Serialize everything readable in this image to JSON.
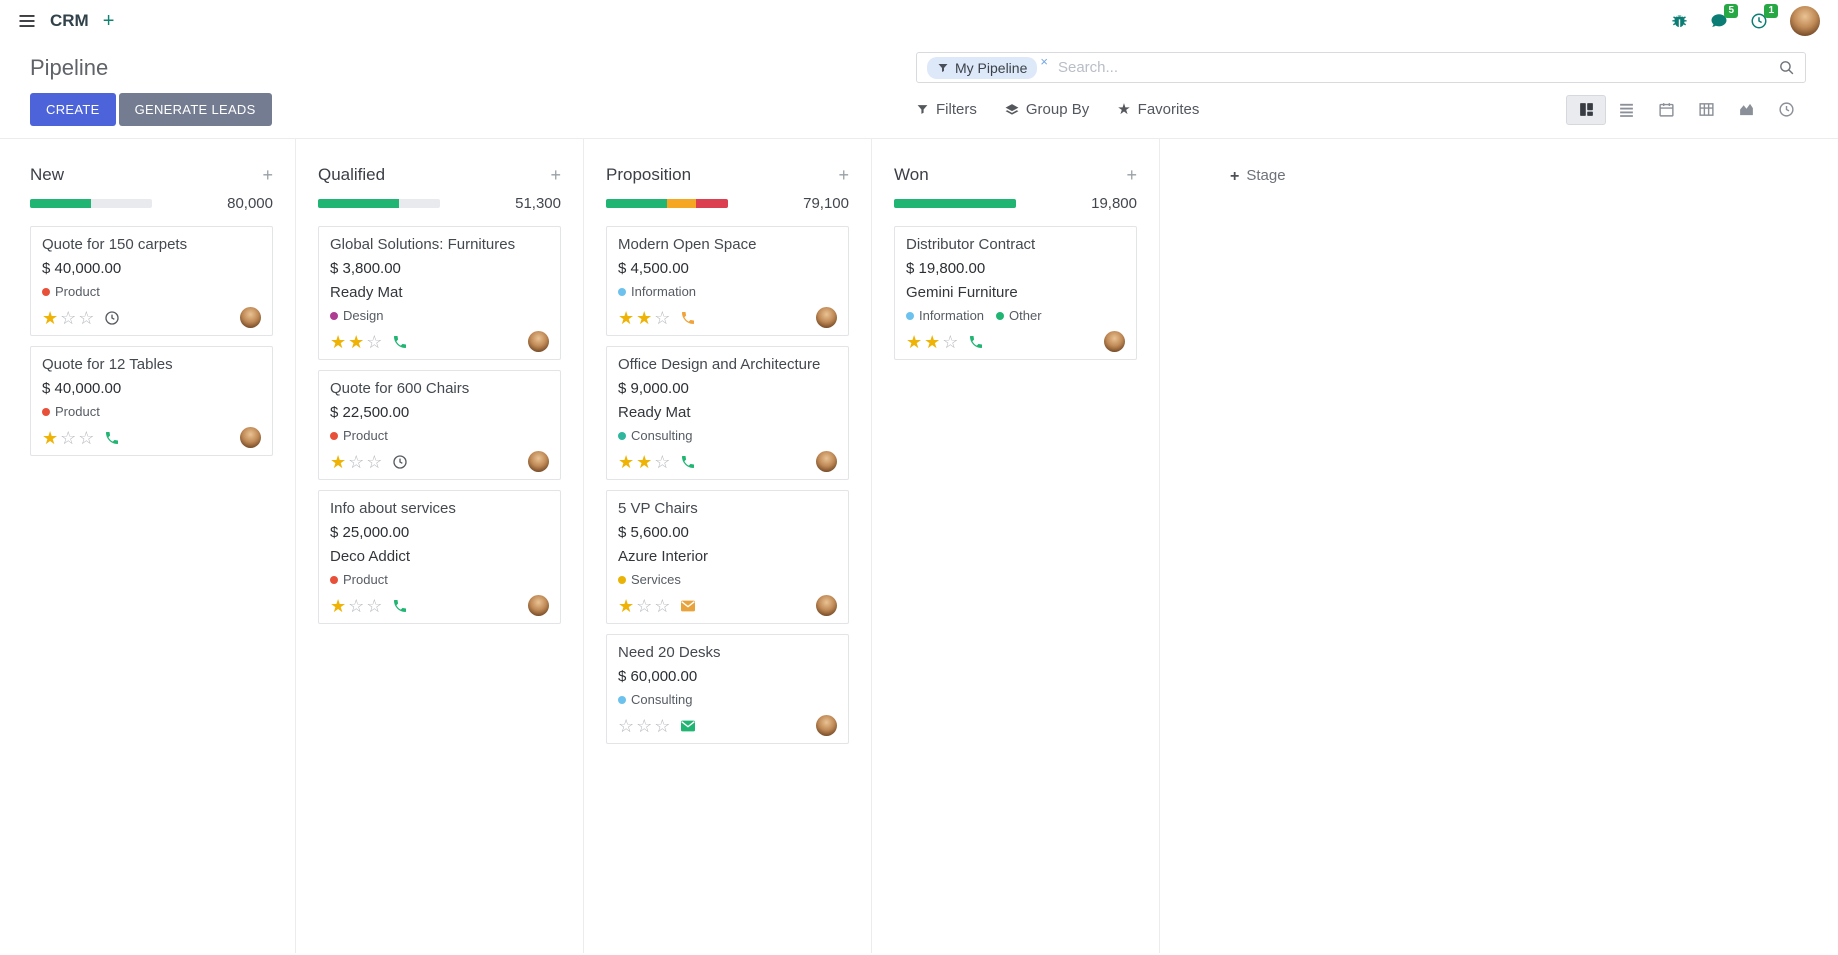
{
  "navbar": {
    "app_name": "CRM",
    "messages_badge": "5",
    "activities_badge": "1"
  },
  "control_panel": {
    "title": "Pipeline",
    "create_label": "CREATE",
    "generate_leads_label": "GENERATE LEADS",
    "filters_label": "Filters",
    "group_by_label": "Group By",
    "favorites_label": "Favorites",
    "search": {
      "facet_label": "My Pipeline",
      "remove_facet": "×",
      "placeholder": "Search..."
    }
  },
  "colors": {
    "primary_button": "#4c63d9",
    "secondary_button": "#737c90",
    "success_green": "#21b573",
    "warning_yellow": "#f5a623",
    "danger_red": "#dc4050",
    "navbar_icon_teal": "#0c7d74",
    "badge_green": "#28a745",
    "star_gold": "#efb306"
  },
  "kanban": {
    "column_add": "+",
    "add_stage_plus": "+",
    "add_stage_label": "Stage",
    "columns": [
      {
        "name": "New",
        "total": "80,000",
        "progress": [
          {
            "color": "#21b573",
            "pct": 50
          }
        ],
        "cards": [
          {
            "title": "Quote for 150 carpets",
            "amount": "$ 40,000.00",
            "partner": "",
            "tags": [
              {
                "label": "Product",
                "color": "#e8503a"
              }
            ],
            "stars": 1,
            "activity": {
              "type": "clock",
              "color": "#565b61"
            }
          },
          {
            "title": "Quote for 12 Tables",
            "amount": "$ 40,000.00",
            "partner": "",
            "tags": [
              {
                "label": "Product",
                "color": "#e8503a"
              }
            ],
            "stars": 1,
            "activity": {
              "type": "phone",
              "color": "#21b573"
            }
          }
        ]
      },
      {
        "name": "Qualified",
        "total": "51,300",
        "progress": [
          {
            "color": "#21b573",
            "pct": 66
          }
        ],
        "cards": [
          {
            "title": "Global Solutions: Furnitures",
            "amount": "$ 3,800.00",
            "partner": "Ready Mat",
            "tags": [
              {
                "label": "Design",
                "color": "#ae3c92"
              }
            ],
            "stars": 2,
            "activity": {
              "type": "phone",
              "color": "#21b573"
            }
          },
          {
            "title": "Quote for 600 Chairs",
            "amount": "$ 22,500.00",
            "partner": "",
            "tags": [
              {
                "label": "Product",
                "color": "#e8503a"
              }
            ],
            "stars": 1,
            "activity": {
              "type": "clock",
              "color": "#565b61"
            }
          },
          {
            "title": "Info about services",
            "amount": "$ 25,000.00",
            "partner": "Deco Addict",
            "tags": [
              {
                "label": "Product",
                "color": "#e8503a"
              }
            ],
            "stars": 1,
            "activity": {
              "type": "phone",
              "color": "#21b573"
            }
          }
        ]
      },
      {
        "name": "Proposition",
        "total": "79,100",
        "progress": [
          {
            "color": "#21b573",
            "pct": 50
          },
          {
            "color": "#f5a623",
            "pct": 24
          },
          {
            "color": "#dc4050",
            "pct": 26
          }
        ],
        "cards": [
          {
            "title": "Modern Open Space",
            "amount": "$ 4,500.00",
            "partner": "",
            "tags": [
              {
                "label": "Information",
                "color": "#6cc1ed"
              }
            ],
            "stars": 2,
            "activity": {
              "type": "phone",
              "color": "#f0a33b"
            }
          },
          {
            "title": "Office Design and Architecture",
            "amount": "$ 9,000.00",
            "partner": "Ready Mat",
            "tags": [
              {
                "label": "Consulting",
                "color": "#2fb79e"
              }
            ],
            "stars": 2,
            "activity": {
              "type": "phone",
              "color": "#21b573"
            }
          },
          {
            "title": "5 VP Chairs",
            "amount": "$ 5,600.00",
            "partner": "Azure Interior",
            "tags": [
              {
                "label": "Services",
                "color": "#eab308"
              }
            ],
            "stars": 1,
            "activity": {
              "type": "envelope",
              "color": "#e9a33c"
            }
          },
          {
            "title": "Need 20 Desks",
            "amount": "$ 60,000.00",
            "partner": "",
            "tags": [
              {
                "label": "Consulting",
                "color": "#6cc1ed"
              }
            ],
            "stars": 0,
            "activity": {
              "type": "envelope",
              "color": "#21b573"
            }
          }
        ]
      },
      {
        "name": "Won",
        "total": "19,800",
        "progress": [
          {
            "color": "#21b573",
            "pct": 100
          }
        ],
        "cards": [
          {
            "title": "Distributor Contract",
            "amount": "$ 19,800.00",
            "partner": "Gemini Furniture",
            "tags": [
              {
                "label": "Information",
                "color": "#6cc1ed"
              },
              {
                "label": "Other",
                "color": "#21b573"
              }
            ],
            "stars": 2,
            "activity": {
              "type": "phone",
              "color": "#21b573"
            }
          }
        ]
      }
    ]
  }
}
